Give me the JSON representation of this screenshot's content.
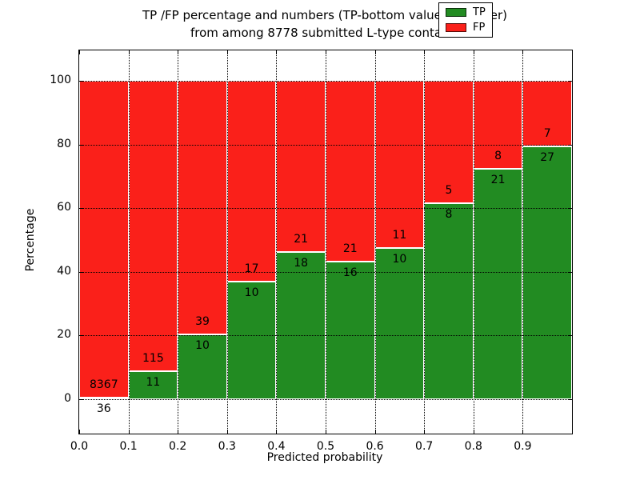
{
  "title": {
    "line1": "TP /FP percentage and numbers (TP-bottom value, FP-upper)",
    "line2": "from among 8778 submitted L-type contacts"
  },
  "axes": {
    "xlabel": "Predicted probability",
    "ylabel": "Percentage"
  },
  "chart_data": {
    "type": "bar",
    "stacked": true,
    "normalized_to_percent": true,
    "title": "TP /FP percentage and numbers (TP-bottom value, FP-upper)\nfrom among 8778 submitted L-type contacts",
    "xlabel": "Predicted probability",
    "ylabel": "Percentage",
    "total_contacts": 8778,
    "bin_edges": [
      0.0,
      0.1,
      0.2,
      0.3,
      0.4,
      0.5,
      0.6,
      0.7,
      0.8,
      0.9,
      1.0
    ],
    "xticks": [
      "0.0",
      "0.1",
      "0.2",
      "0.3",
      "0.4",
      "0.5",
      "0.6",
      "0.7",
      "0.8",
      "0.9"
    ],
    "yticks": [
      0,
      20,
      40,
      60,
      80,
      100
    ],
    "xlim": [
      0.0,
      1.0
    ],
    "ylim": [
      -10.8,
      109.6
    ],
    "grid": "dotted",
    "series": [
      {
        "name": "TP",
        "color": "#228b22",
        "counts": [
          36,
          11,
          10,
          10,
          18,
          16,
          10,
          8,
          21,
          27
        ]
      },
      {
        "name": "FP",
        "color": "#fa201a",
        "counts": [
          8367,
          115,
          39,
          17,
          21,
          21,
          11,
          5,
          8,
          7
        ]
      }
    ],
    "tp_percent": [
      0.43,
      8.73,
      20.41,
      37.04,
      46.15,
      43.24,
      47.62,
      61.54,
      72.41,
      79.41
    ],
    "legend": {
      "position": "upper right",
      "entries": [
        "TP",
        "FP"
      ]
    }
  }
}
